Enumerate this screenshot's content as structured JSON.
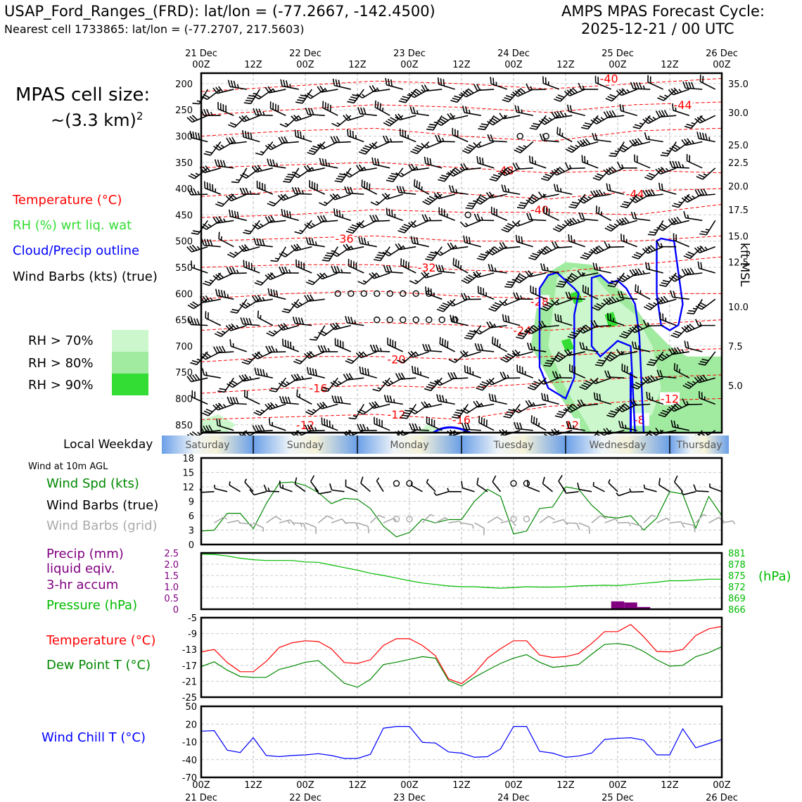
{
  "header": {
    "station": "USAP_Ford_Ranges_(FRD): lat/lon = (-77.2667, -142.4500)",
    "nearest": "Nearest cell 1733865: lat/lon = (-77.2707, 217.5603)",
    "cycle_line1": "AMPS MPAS Forecast Cycle:",
    "cycle_line2": "2025-12-21 / 00 UTC"
  },
  "cell_size": {
    "line1": "MPAS cell size:",
    "line2": "~(3.3 km)",
    "sup": "2"
  },
  "legend_top": {
    "temperature": "Temperature (°C)",
    "rh": "RH (%) wrt liq. wat",
    "cloud": "Cloud/Precip outline",
    "barbs": "Wind Barbs (kts) (true)",
    "rh70": "RH > 70%",
    "rh80": "RH > 80%",
    "rh90": "RH > 90%"
  },
  "colors": {
    "temp": "#ff0000",
    "rh70": "#ccf7cc",
    "rh80": "#a0eba0",
    "rh90": "#33dd33",
    "cloud": "#0000ff",
    "wind": "#008800",
    "dew": "#008800",
    "pressure": "#00bb00",
    "precip": "#800080",
    "chill": "#0000ff",
    "grid_barb": "#aaaaaa"
  },
  "time_axis": {
    "top_dates": [
      "21 Dec",
      "",
      "22 Dec",
      "",
      "23 Dec",
      "",
      "24 Dec",
      "",
      "25 Dec",
      "",
      "26 Dec"
    ],
    "hours": [
      "00Z",
      "12Z",
      "00Z",
      "12Z",
      "00Z",
      "12Z",
      "00Z",
      "12Z",
      "00Z",
      "12Z",
      "00Z"
    ],
    "bottom_dates": [
      "21 Dec",
      "",
      "22 Dec",
      "",
      "23 Dec",
      "",
      "24 Dec",
      "",
      "25 Dec",
      "",
      "26 Dec"
    ]
  },
  "weekday": {
    "label": "Local Weekday",
    "days": [
      "Saturday",
      "Sunday",
      "Monday",
      "Tuesday",
      "Wednesday",
      "Thursday"
    ]
  },
  "wind_panel": {
    "note": "Wind at 10m AGL",
    "spd_label": "Wind Spd (kts)",
    "barbs_true": "Wind Barbs (true)",
    "barbs_grid": "Wind Barbs (grid)"
  },
  "precip_panel": {
    "l1": "Precip (mm)",
    "l2": "liquid eqiv.",
    "l3": "3-hr accum",
    "pressure_label": "Pressure (hPa)",
    "hpa_unit": "(hPa)"
  },
  "temp_panel": {
    "temp": "Temperature (°C)",
    "dew": "Dew Point T (°C)"
  },
  "chill_panel": {
    "label": "Wind Chill T (°C)"
  },
  "right_axis_title": "kft MSL",
  "chart_data": [
    {
      "type": "heatmap",
      "name": "cross-section",
      "x_hours": [
        0,
        120
      ],
      "pressure_ticks": [
        200,
        250,
        300,
        350,
        400,
        450,
        500,
        550,
        600,
        650,
        700,
        750,
        800,
        850
      ],
      "kft_ticks": [
        {
          "p": 200,
          "label": "35.0"
        },
        {
          "p": 255,
          "label": "30.0"
        },
        {
          "p": 317,
          "label": "25.0"
        },
        {
          "p": 350,
          "label": "22.5"
        },
        {
          "p": 395,
          "label": "20.0"
        },
        {
          "p": 440,
          "label": "17.5"
        },
        {
          "p": 490,
          "label": "15.0"
        },
        {
          "p": 540,
          "label": "12.5"
        },
        {
          "p": 625,
          "label": "10.0"
        },
        {
          "p": 700,
          "label": "7.5"
        },
        {
          "p": 775,
          "label": "5.0"
        }
      ],
      "ylim": [
        180,
        865
      ],
      "temp_labels": [
        {
          "h": 94,
          "p": 190,
          "t": "-40"
        },
        {
          "h": 111,
          "p": 240,
          "t": "-44"
        },
        {
          "h": 70,
          "p": 365,
          "t": "-48"
        },
        {
          "h": 100,
          "p": 410,
          "t": "-44"
        },
        {
          "h": 78,
          "p": 440,
          "t": "-40"
        },
        {
          "h": 33,
          "p": 495,
          "t": "-36"
        },
        {
          "h": 52,
          "p": 550,
          "t": "-32"
        },
        {
          "h": 78,
          "p": 615,
          "t": "-28"
        },
        {
          "h": 74,
          "p": 670,
          "t": "-24"
        },
        {
          "h": 45,
          "p": 725,
          "t": "-20"
        },
        {
          "h": 27,
          "p": 780,
          "t": "-16"
        },
        {
          "h": 45,
          "p": 830,
          "t": "-12"
        },
        {
          "h": 24,
          "p": 850,
          "t": "-12"
        },
        {
          "h": 60,
          "p": 840,
          "t": "-16"
        },
        {
          "h": 85,
          "p": 850,
          "t": "-12"
        },
        {
          "h": 108,
          "p": 800,
          "t": "-12"
        },
        {
          "h": 101,
          "p": 840,
          "t": "-8"
        }
      ]
    },
    {
      "type": "line",
      "name": "wind-speed",
      "ylim": [
        0,
        18
      ],
      "yticks": [
        0,
        3,
        6,
        9,
        12,
        15,
        18
      ],
      "x": [
        0,
        3,
        6,
        9,
        12,
        15,
        18,
        21,
        24,
        27,
        30,
        33,
        36,
        39,
        42,
        45,
        48,
        51,
        54,
        57,
        60,
        63,
        66,
        69,
        72,
        75,
        78,
        81,
        84,
        87,
        90,
        93,
        96,
        99,
        102,
        105,
        108,
        111,
        114,
        117,
        120
      ],
      "values": [
        2.8,
        3,
        6.5,
        6.5,
        3.3,
        8.5,
        12.8,
        13,
        12.3,
        10.8,
        8.5,
        9.6,
        9.4,
        7.5,
        3.8,
        1.6,
        2.5,
        5.3,
        4.5,
        5.2,
        5.2,
        9,
        11.5,
        10,
        2.2,
        2.8,
        7.5,
        7.8,
        12,
        11.5,
        8.2,
        5.8,
        5.5,
        6,
        3,
        5.5,
        11,
        10.5,
        3.4,
        10,
        6
      ]
    },
    {
      "type": "bar",
      "name": "precip-pressure",
      "precip_ylim": [
        0,
        2.5
      ],
      "precip_ticks": [
        0,
        0.5,
        1.0,
        1.5,
        2.0,
        2.5
      ],
      "precip_bars": [
        {
          "h": 96,
          "v": 0.35
        },
        {
          "h": 99,
          "v": 0.3
        },
        {
          "h": 102,
          "v": 0.1
        }
      ],
      "pressure_ylim": [
        866,
        881
      ],
      "pressure_ticks": [
        866,
        869,
        872,
        875,
        878,
        881
      ],
      "pressure_x": [
        0,
        3,
        6,
        9,
        12,
        15,
        18,
        21,
        24,
        27,
        30,
        33,
        36,
        39,
        42,
        45,
        48,
        51,
        54,
        57,
        60,
        63,
        66,
        69,
        72,
        75,
        78,
        81,
        84,
        87,
        90,
        93,
        96,
        99,
        102,
        105,
        108,
        111,
        114,
        117,
        120
      ],
      "pressure": [
        880.7,
        880.6,
        880.2,
        879.6,
        879.2,
        879,
        879,
        879,
        878.6,
        878.5,
        877.8,
        877.1,
        876.4,
        875.6,
        875,
        874.3,
        873.6,
        873,
        872.6,
        872.2,
        872,
        872,
        871.8,
        871.6,
        871.8,
        872,
        871.9,
        871.9,
        872,
        872.2,
        872.3,
        872.4,
        872.3,
        872.6,
        872.9,
        873.2,
        873.6,
        873.6,
        873.8,
        874,
        874
      ]
    },
    {
      "type": "line",
      "name": "temperature-dewpoint",
      "ylim": [
        -25,
        -5
      ],
      "yticks": [
        -25,
        -21,
        -17,
        -13,
        -9,
        -5
      ],
      "x": [
        0,
        3,
        6,
        9,
        12,
        15,
        18,
        21,
        24,
        27,
        30,
        33,
        36,
        39,
        42,
        45,
        48,
        51,
        54,
        57,
        60,
        63,
        66,
        69,
        72,
        75,
        78,
        81,
        84,
        87,
        90,
        93,
        96,
        99,
        102,
        105,
        108,
        111,
        114,
        117,
        120
      ],
      "series": [
        {
          "name": "Temperature (°C)",
          "values": [
            -13.6,
            -13,
            -16.3,
            -18.6,
            -18.6,
            -16,
            -12.5,
            -11.3,
            -10.8,
            -11,
            -12.8,
            -16.3,
            -16.5,
            -15.6,
            -12,
            -10.3,
            -10.3,
            -12,
            -14.6,
            -20.4,
            -21.6,
            -19,
            -15.2,
            -12.8,
            -10.8,
            -10.8,
            -14.4,
            -15,
            -14.8,
            -14,
            -11.5,
            -8.5,
            -8.5,
            -6.7,
            -9.8,
            -13.5,
            -13.6,
            -13,
            -9.5,
            -7.8,
            -7.2
          ]
        },
        {
          "name": "Dew Point T (°C)",
          "values": [
            -17.3,
            -16.1,
            -18.2,
            -19.8,
            -20,
            -20,
            -18,
            -17.2,
            -16.2,
            -15.8,
            -18.6,
            -21.5,
            -22.5,
            -20.5,
            -16.8,
            -16.2,
            -15.5,
            -14.8,
            -15.2,
            -20.8,
            -22.2,
            -20,
            -18.2,
            -16.5,
            -15.2,
            -14.3,
            -16.2,
            -17.5,
            -17.2,
            -16.8,
            -14.2,
            -11.7,
            -11.5,
            -12,
            -13.5,
            -15.6,
            -17.2,
            -17,
            -14.8,
            -13.8,
            -12.3
          ]
        }
      ]
    },
    {
      "type": "line",
      "name": "wind-chill",
      "ylim": [
        -70,
        50
      ],
      "yticks": [
        -70,
        -40,
        -10,
        20,
        50
      ],
      "x": [
        0,
        3,
        6,
        9,
        12,
        15,
        18,
        21,
        24,
        27,
        30,
        33,
        36,
        39,
        42,
        45,
        48,
        51,
        54,
        57,
        60,
        63,
        66,
        69,
        72,
        75,
        78,
        81,
        84,
        87,
        90,
        93,
        96,
        99,
        102,
        105,
        108,
        111,
        114,
        117,
        120
      ],
      "values": [
        8,
        9,
        -24,
        -28,
        -3,
        -33,
        -35,
        -33,
        -32,
        -30,
        -33,
        -38,
        -38,
        -31,
        13,
        16,
        16,
        -11,
        -12,
        -27,
        -29,
        -36,
        -35,
        -22,
        16,
        16,
        -26,
        -29,
        -36,
        -34,
        -29,
        -6,
        -4,
        -3,
        -7,
        -32,
        -32,
        12,
        -20,
        -13,
        -6
      ]
    }
  ]
}
